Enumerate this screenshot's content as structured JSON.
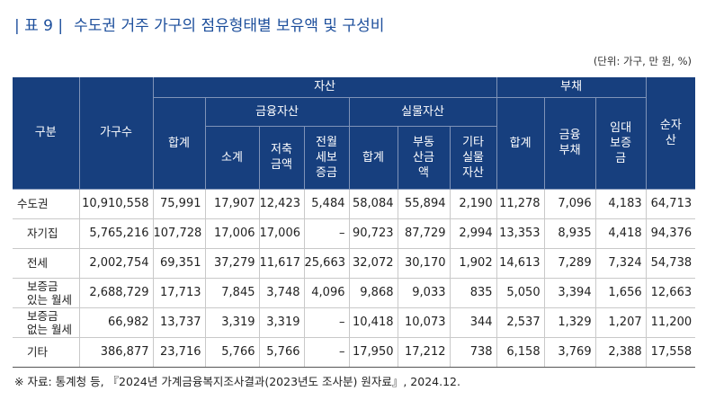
{
  "header": {
    "label": "| 표 9 |",
    "title": "수도권 거주 가구의 점유형태별 보유액 및 구성비",
    "unit": "(단위: 가구, 만 원, %)"
  },
  "table": {
    "columns": {
      "category": "구분",
      "households": "가구수",
      "assets": "자산",
      "liabilities": "부채",
      "net_assets": "순자\n산",
      "asset_total": "합계",
      "financial": "금융자산",
      "real": "실물자산",
      "fin_sub": "소계",
      "savings": "저축\n금액",
      "deposit": "전월\n세보\n증금",
      "real_total": "합계",
      "real_estate": "부동\n산금\n액",
      "other_real": "기타\n실물\n자산",
      "liab_total": "합계",
      "fin_debt": "금융\n부채",
      "lease_deposit": "임대\n보증\n금"
    },
    "rows": [
      [
        "수도권",
        "10,910,558",
        "75,991",
        "17,907",
        "12,423",
        "5,484",
        "58,084",
        "55,894",
        "2,190",
        "11,278",
        "7,096",
        "4,183",
        "64,713"
      ],
      [
        "자기집",
        "5,765,216",
        "107,728",
        "17,006",
        "17,006",
        "–",
        "90,723",
        "87,729",
        "2,994",
        "13,353",
        "8,935",
        "4,418",
        "94,376"
      ],
      [
        "전세",
        "2,002,754",
        "69,351",
        "37,279",
        "11,617",
        "25,663",
        "32,072",
        "30,170",
        "1,902",
        "14,613",
        "7,289",
        "7,324",
        "54,738"
      ],
      [
        "보증금\n있는 월세",
        "2,688,729",
        "17,713",
        "7,845",
        "3,748",
        "4,096",
        "9,868",
        "9,033",
        "835",
        "5,050",
        "3,394",
        "1,656",
        "12,663"
      ],
      [
        "보증금\n없는 월세",
        "66,982",
        "13,737",
        "3,319",
        "3,319",
        "–",
        "10,418",
        "10,073",
        "344",
        "2,537",
        "1,329",
        "1,207",
        "11,200"
      ],
      [
        "기타",
        "386,877",
        "23,716",
        "5,766",
        "5,766",
        "–",
        "17,950",
        "17,212",
        "738",
        "6,158",
        "3,769",
        "2,388",
        "17,558"
      ]
    ]
  },
  "source": "※ 자료: 통계청 등, 『2024년 가계금융복지조사결과(2023년도 조사분) 원자료』, 2024.12."
}
